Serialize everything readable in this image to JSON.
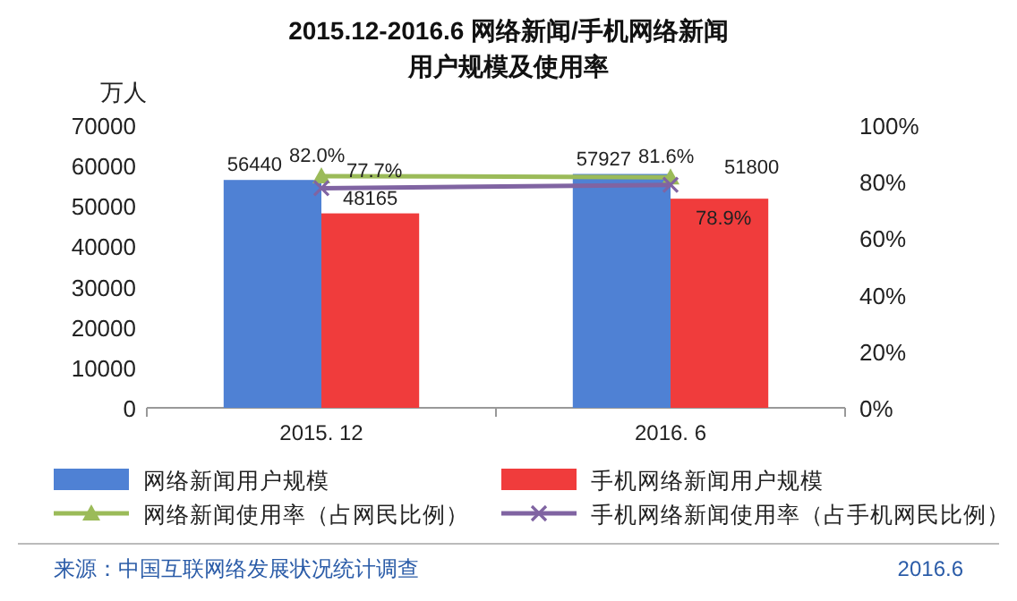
{
  "chart_data": {
    "type": "bar",
    "title": "2015.12-2016.6 网络新闻/手机网络新闻用户规模及使用率",
    "ylabel": "万人",
    "categories": [
      "2015. 12",
      "2016. 6"
    ],
    "series": [
      {
        "name": "网络新闻用户规模",
        "color": "#4f81d4",
        "values": [
          56440,
          57927
        ],
        "value_labels": [
          "56440",
          "57927"
        ]
      },
      {
        "name": "手机网络新闻用户规模",
        "color": "#f03c3c",
        "values": [
          48165,
          51800
        ],
        "value_labels": [
          "48165",
          "51800"
        ]
      },
      {
        "name": "网络新闻使用率（占网民比例）",
        "type": "line",
        "axis": "y2",
        "color": "#9bbb59",
        "marker": "triangle",
        "values": [
          82.0,
          81.6
        ],
        "value_labels": [
          "82.0%",
          "81.6%"
        ]
      },
      {
        "name": "手机网络新闻使用率（占手机网民比例）",
        "type": "line",
        "axis": "y2",
        "color": "#8064a2",
        "marker": "cross",
        "values": [
          77.7,
          78.9
        ],
        "value_labels": [
          "77.7%",
          "78.9%"
        ]
      }
    ],
    "ylim": [
      0,
      70000
    ],
    "yticks": [
      0,
      10000,
      20000,
      30000,
      40000,
      50000,
      60000,
      70000
    ],
    "y2lim": [
      0,
      100
    ],
    "y2ticks": [
      {
        "value": 0,
        "label": "0%"
      },
      {
        "value": 20,
        "label": "20%"
      },
      {
        "value": 40,
        "label": "40%"
      },
      {
        "value": 60,
        "label": "60%"
      },
      {
        "value": 80,
        "label": "80%"
      },
      {
        "value": 100,
        "label": "100%"
      }
    ],
    "grid": false,
    "legend": "bottom",
    "annotations": [
      "来源：中国互联网络发展状况统计调查",
      "2016.6"
    ]
  }
}
